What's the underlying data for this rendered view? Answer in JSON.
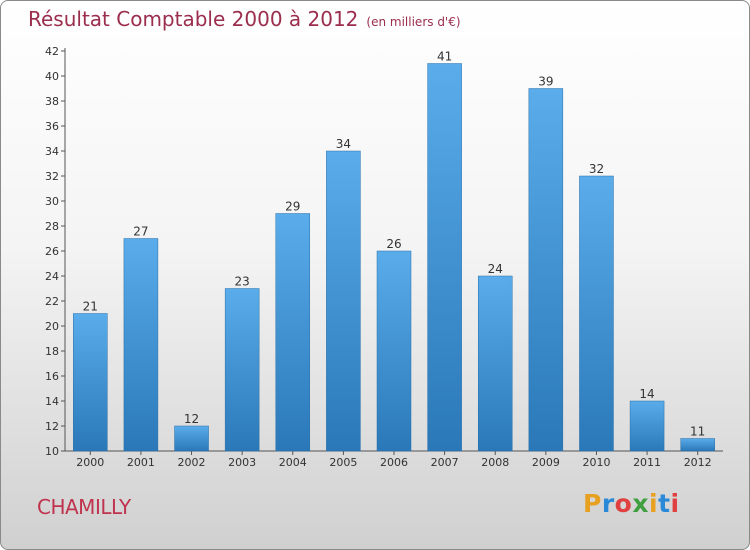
{
  "title": "Résultat Comptable 2000 à 2012",
  "subtitle": "(en milliers d'€)",
  "city": "CHAMILLY",
  "logo": "Proxiti",
  "colors": {
    "title": "#9b2d4d",
    "city": "#c0334e",
    "bar_light": "#5aacea",
    "bar_dark": "#2a78b8",
    "logo_letters": [
      "#e8a020",
      "#2a8ad8",
      "#e04040",
      "#40a040",
      "#e8a020",
      "#2a8ad8",
      "#e04040"
    ]
  },
  "chart_data": {
    "type": "bar",
    "title": "Résultat Comptable 2000 à 2012",
    "subtitle": "(en milliers d'€)",
    "xlabel": "",
    "ylabel": "",
    "categories": [
      "2000",
      "2001",
      "2002",
      "2003",
      "2004",
      "2005",
      "2006",
      "2007",
      "2008",
      "2009",
      "2010",
      "2011",
      "2012"
    ],
    "values": [
      21,
      27,
      12,
      23,
      29,
      34,
      26,
      41,
      24,
      39,
      32,
      14,
      11
    ],
    "ylim": [
      10,
      42
    ],
    "yticks": [
      10,
      12,
      14,
      16,
      18,
      20,
      22,
      24,
      26,
      28,
      30,
      32,
      34,
      36,
      38,
      40,
      42
    ],
    "grid": false,
    "data_labels": true
  }
}
